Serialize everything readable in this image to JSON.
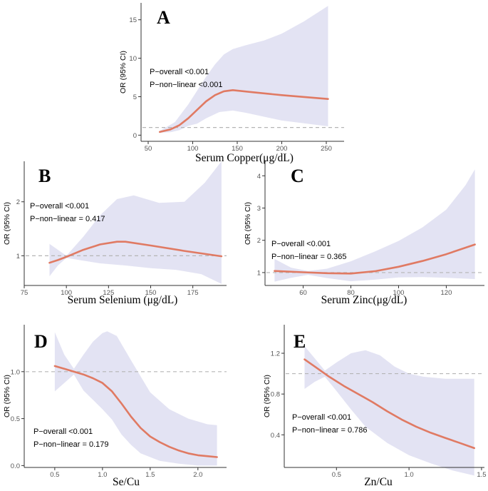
{
  "colors": {
    "band": "#e3e3f3",
    "curve": "#e07a63",
    "refline": "#b5b5b5",
    "axis": "#333333"
  },
  "chart_data": [
    {
      "id": "A",
      "type": "line",
      "letter": "A",
      "xlabel": "Serum Copper(μg/dL)",
      "ylabel": "OR (95% CI)",
      "xlim": [
        42,
        270
      ],
      "ylim": [
        -0.8,
        17.2
      ],
      "xticks": [
        50,
        100,
        150,
        200,
        250
      ],
      "yticks": [
        0,
        5,
        10,
        15
      ],
      "ref": 1,
      "curve": [
        [
          63,
          0.42
        ],
        [
          75,
          0.75
        ],
        [
          85,
          1.3
        ],
        [
          95,
          2.2
        ],
        [
          105,
          3.3
        ],
        [
          115,
          4.4
        ],
        [
          125,
          5.2
        ],
        [
          135,
          5.7
        ],
        [
          145,
          5.85
        ],
        [
          170,
          5.55
        ],
        [
          200,
          5.2
        ],
        [
          252,
          4.7
        ]
      ],
      "upper": [
        [
          63,
          0.55
        ],
        [
          80,
          1.7
        ],
        [
          95,
          4
        ],
        [
          105,
          5.8
        ],
        [
          115,
          7.6
        ],
        [
          125,
          9.2
        ],
        [
          135,
          10.5
        ],
        [
          145,
          11.2
        ],
        [
          160,
          11.7
        ],
        [
          180,
          12.3
        ],
        [
          200,
          13.2
        ],
        [
          225,
          14.8
        ],
        [
          252,
          16.8
        ]
      ],
      "lower": [
        [
          252,
          1.15
        ],
        [
          200,
          1.9
        ],
        [
          160,
          2.9
        ],
        [
          145,
          3.2
        ],
        [
          130,
          3
        ],
        [
          115,
          2.2
        ],
        [
          105,
          1.5
        ],
        [
          95,
          1.2
        ],
        [
          85,
          0.65
        ],
        [
          75,
          0.38
        ],
        [
          63,
          0.32
        ]
      ],
      "annotations": [
        "P−overall <0.001",
        "P−non−linear <0.001"
      ]
    },
    {
      "id": "B",
      "type": "line",
      "letter": "B",
      "xlabel": "Serum  Selenium (μg/dL)",
      "ylabel": "OR (95% CI)",
      "xlim": [
        75,
        195
      ],
      "ylim": [
        0.45,
        2.75
      ],
      "xticks": [
        75,
        100,
        125,
        150,
        175
      ],
      "yticks": [
        1,
        2
      ],
      "ref": 1,
      "curve": [
        [
          90,
          0.87
        ],
        [
          95,
          0.92
        ],
        [
          100,
          0.98
        ],
        [
          110,
          1.11
        ],
        [
          120,
          1.21
        ],
        [
          130,
          1.26
        ],
        [
          135,
          1.26
        ],
        [
          150,
          1.19
        ],
        [
          170,
          1.09
        ],
        [
          192,
          0.99
        ]
      ],
      "upper": [
        [
          90,
          1.22
        ],
        [
          100,
          1.0
        ],
        [
          110,
          1.35
        ],
        [
          120,
          1.75
        ],
        [
          130,
          2.05
        ],
        [
          140,
          2.12
        ],
        [
          155,
          1.98
        ],
        [
          170,
          2.0
        ],
        [
          182,
          2.35
        ],
        [
          192,
          2.75
        ]
      ],
      "lower": [
        [
          192,
          0.48
        ],
        [
          180,
          0.66
        ],
        [
          165,
          0.74
        ],
        [
          150,
          0.77
        ],
        [
          135,
          0.82
        ],
        [
          120,
          0.86
        ],
        [
          110,
          0.91
        ],
        [
          100,
          0.96
        ],
        [
          95,
          0.82
        ],
        [
          90,
          0.62
        ]
      ],
      "annotations": [
        "P−overall <0.001",
        "P−non−linear = 0.417"
      ]
    },
    {
      "id": "C",
      "type": "line",
      "letter": "C",
      "xlabel": "Serum Zinc(μg/dL)",
      "ylabel": "OR (95% CI)",
      "xlim": [
        44,
        136
      ],
      "ylim": [
        0.6,
        4.45
      ],
      "xticks": [
        60,
        80,
        100,
        120
      ],
      "yticks": [
        1,
        2,
        3,
        4
      ],
      "ref": 1,
      "curve": [
        [
          48,
          1.05
        ],
        [
          60,
          1.01
        ],
        [
          70,
          0.98
        ],
        [
          80,
          0.97
        ],
        [
          90,
          1.04
        ],
        [
          100,
          1.18
        ],
        [
          110,
          1.36
        ],
        [
          120,
          1.57
        ],
        [
          132,
          1.87
        ]
      ],
      "upper": [
        [
          48,
          1.42
        ],
        [
          55,
          1.15
        ],
        [
          62,
          1.05
        ],
        [
          70,
          1.12
        ],
        [
          80,
          1.35
        ],
        [
          90,
          1.65
        ],
        [
          100,
          1.98
        ],
        [
          110,
          2.4
        ],
        [
          120,
          2.95
        ],
        [
          128,
          3.7
        ],
        [
          132,
          4.2
        ]
      ],
      "lower": [
        [
          132,
          0.8
        ],
        [
          120,
          0.84
        ],
        [
          110,
          0.86
        ],
        [
          100,
          0.85
        ],
        [
          90,
          0.78
        ],
        [
          80,
          0.73
        ],
        [
          70,
          0.83
        ],
        [
          62,
          0.93
        ],
        [
          55,
          0.84
        ],
        [
          48,
          0.72
        ]
      ],
      "annotations": [
        "P−overall <0.001",
        "P−non−linear =  0.365"
      ]
    },
    {
      "id": "D",
      "type": "line",
      "letter": "D",
      "xlabel": "Se/Cu",
      "ylabel": "OR (95% CI)",
      "xlim": [
        0.18,
        2.3
      ],
      "ylim": [
        -0.02,
        1.5
      ],
      "xticks": [
        0.5,
        1.0,
        1.5,
        2.0
      ],
      "ytickLabels": [
        "0.0",
        "0.5",
        "1.0"
      ],
      "yticks": [
        0,
        0.5,
        1.0
      ],
      "ref": 1,
      "curve": [
        [
          0.5,
          1.06
        ],
        [
          0.6,
          1.03
        ],
        [
          0.7,
          1.0
        ],
        [
          0.8,
          0.97
        ],
        [
          0.9,
          0.93
        ],
        [
          1.0,
          0.88
        ],
        [
          1.1,
          0.79
        ],
        [
          1.2,
          0.66
        ],
        [
          1.3,
          0.52
        ],
        [
          1.4,
          0.4
        ],
        [
          1.5,
          0.31
        ],
        [
          1.6,
          0.25
        ],
        [
          1.7,
          0.2
        ],
        [
          1.8,
          0.16
        ],
        [
          1.9,
          0.13
        ],
        [
          2.0,
          0.11
        ],
        [
          2.1,
          0.1
        ],
        [
          2.2,
          0.09
        ]
      ],
      "upper": [
        [
          0.5,
          1.42
        ],
        [
          0.6,
          1.18
        ],
        [
          0.7,
          1.03
        ],
        [
          0.8,
          1.18
        ],
        [
          0.9,
          1.32
        ],
        [
          1.0,
          1.41
        ],
        [
          1.05,
          1.43
        ],
        [
          1.15,
          1.38
        ],
        [
          1.3,
          1.12
        ],
        [
          1.4,
          0.95
        ],
        [
          1.5,
          0.78
        ],
        [
          1.7,
          0.6
        ],
        [
          1.9,
          0.5
        ],
        [
          2.1,
          0.44
        ],
        [
          2.2,
          0.43
        ]
      ],
      "lower": [
        [
          2.2,
          0.0
        ],
        [
          2.0,
          0.0
        ],
        [
          1.8,
          0.02
        ],
        [
          1.6,
          0.05
        ],
        [
          1.5,
          0.09
        ],
        [
          1.4,
          0.13
        ],
        [
          1.3,
          0.22
        ],
        [
          1.2,
          0.33
        ],
        [
          1.1,
          0.49
        ],
        [
          1.0,
          0.6
        ],
        [
          0.9,
          0.7
        ],
        [
          0.8,
          0.8
        ],
        [
          0.7,
          0.97
        ],
        [
          0.6,
          0.88
        ],
        [
          0.5,
          0.79
        ]
      ],
      "annotations": [
        "P−overall <0.001",
        "P−non−linear = 0.179"
      ]
    },
    {
      "id": "E",
      "type": "line",
      "letter": "E",
      "xlabel": "Zn/Cu",
      "ylabel": "OR (95% CI)",
      "xlim": [
        0.14,
        1.52
      ],
      "ylim": [
        0.08,
        1.48
      ],
      "xticks": [
        0.5,
        1.0,
        1.5
      ],
      "ytickLabels": [
        "0.4",
        "0.8",
        "1.2"
      ],
      "yticks": [
        0.4,
        0.8,
        1.2
      ],
      "ref": 1,
      "curve": [
        [
          0.28,
          1.14
        ],
        [
          0.35,
          1.07
        ],
        [
          0.45,
          0.97
        ],
        [
          0.55,
          0.88
        ],
        [
          0.65,
          0.8
        ],
        [
          0.75,
          0.72
        ],
        [
          0.85,
          0.63
        ],
        [
          0.95,
          0.55
        ],
        [
          1.05,
          0.48
        ],
        [
          1.15,
          0.42
        ],
        [
          1.25,
          0.37
        ],
        [
          1.35,
          0.32
        ],
        [
          1.45,
          0.27
        ]
      ],
      "upper": [
        [
          0.28,
          1.27
        ],
        [
          0.35,
          1.15
        ],
        [
          0.42,
          1.03
        ],
        [
          0.5,
          1.11
        ],
        [
          0.6,
          1.2
        ],
        [
          0.7,
          1.23
        ],
        [
          0.8,
          1.18
        ],
        [
          0.9,
          1.07
        ],
        [
          1.0,
          1.0
        ],
        [
          1.1,
          0.97
        ],
        [
          1.25,
          0.95
        ],
        [
          1.45,
          0.95
        ]
      ],
      "lower": [
        [
          1.45,
          0.0
        ],
        [
          1.3,
          0.05
        ],
        [
          1.15,
          0.12
        ],
        [
          1.0,
          0.2
        ],
        [
          0.85,
          0.32
        ],
        [
          0.7,
          0.48
        ],
        [
          0.6,
          0.65
        ],
        [
          0.5,
          0.83
        ],
        [
          0.42,
          0.97
        ],
        [
          0.35,
          0.92
        ],
        [
          0.28,
          0.85
        ]
      ],
      "annotations": [
        "P−overall <0.001",
        "P−non−linear = 0.786"
      ]
    }
  ]
}
